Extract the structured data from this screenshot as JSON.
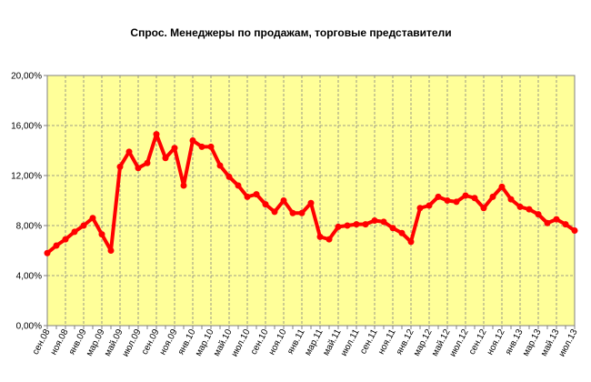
{
  "chart_data": {
    "type": "line",
    "title": "Спрос. Менеджеры по продажам, торговые представители",
    "categories": [
      "сен.08",
      null,
      "ноя.08",
      null,
      "янв.09",
      null,
      "мар.09",
      null,
      "май.09",
      null,
      "июл.09",
      null,
      "сен.09",
      null,
      "ноя.09",
      null,
      "янв.10",
      null,
      "мар.10",
      null,
      "май.10",
      null,
      "июл.10",
      null,
      "сен.10",
      null,
      "ноя.10",
      null,
      "янв.11",
      null,
      "мар.11",
      null,
      "май.11",
      null,
      "июл.11",
      null,
      "сен.11",
      null,
      "ноя.11",
      null,
      "янв.12",
      null,
      "мар.12",
      null,
      "май.12",
      null,
      "июл.12",
      null,
      "сен.12",
      null,
      "ноя.12",
      null,
      "янв.13",
      null,
      "мар.13",
      null,
      "май.13",
      null,
      "июл.13"
    ],
    "series": [
      {
        "name": "Спрос",
        "color": "#ff0000",
        "values": [
          5.8,
          6.4,
          6.9,
          7.5,
          8.0,
          8.6,
          7.3,
          6.0,
          12.7,
          13.9,
          12.6,
          13.0,
          15.3,
          13.4,
          14.2,
          11.2,
          14.8,
          14.3,
          14.3,
          12.8,
          11.9,
          11.2,
          10.3,
          10.5,
          9.7,
          9.1,
          10.0,
          9.0,
          9.0,
          9.8,
          7.1,
          6.9,
          7.9,
          8.0,
          8.1,
          8.1,
          8.4,
          8.3,
          7.8,
          7.4,
          6.7,
          9.4,
          9.6,
          10.3,
          10.0,
          9.9,
          10.4,
          10.2,
          9.4,
          10.3,
          11.1,
          10.1,
          9.5,
          9.3,
          8.9,
          8.2,
          8.5,
          8.1,
          7.6
        ]
      }
    ],
    "ylim": [
      0,
      20
    ],
    "yticks": [
      {
        "value": 0,
        "label": "0,00%"
      },
      {
        "value": 4,
        "label": "4,00%"
      },
      {
        "value": 8,
        "label": "8,00%"
      },
      {
        "value": 12,
        "label": "12,00%"
      },
      {
        "value": 16,
        "label": "16,00%"
      },
      {
        "value": 20,
        "label": "20,00%"
      }
    ],
    "grid": true,
    "background": "#ffff99"
  }
}
